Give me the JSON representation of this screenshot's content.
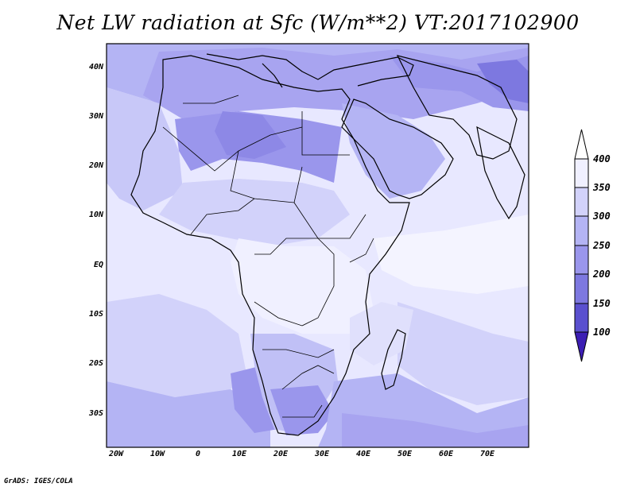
{
  "title": "Net LW radiation at Sfc (W/m**2) VT:2017102900",
  "credit": "GrADS: IGES/COLA",
  "lat_labels": [
    "40N",
    "30N",
    "20N",
    "10N",
    "EQ",
    "10S",
    "20S",
    "30S"
  ],
  "lon_labels": [
    "20W",
    "10W",
    "0",
    "10E",
    "20E",
    "30E",
    "40E",
    "50E",
    "60E",
    "70E"
  ],
  "colorbar": {
    "levels": [
      "400",
      "350",
      "300",
      "250",
      "200",
      "150",
      "100"
    ],
    "colors": [
      "#f0f0ff",
      "#d2d2fa",
      "#b4b4f4",
      "#9a96ec",
      "#7d78e0",
      "#5a50cf",
      "#3c1eb4"
    ]
  }
}
